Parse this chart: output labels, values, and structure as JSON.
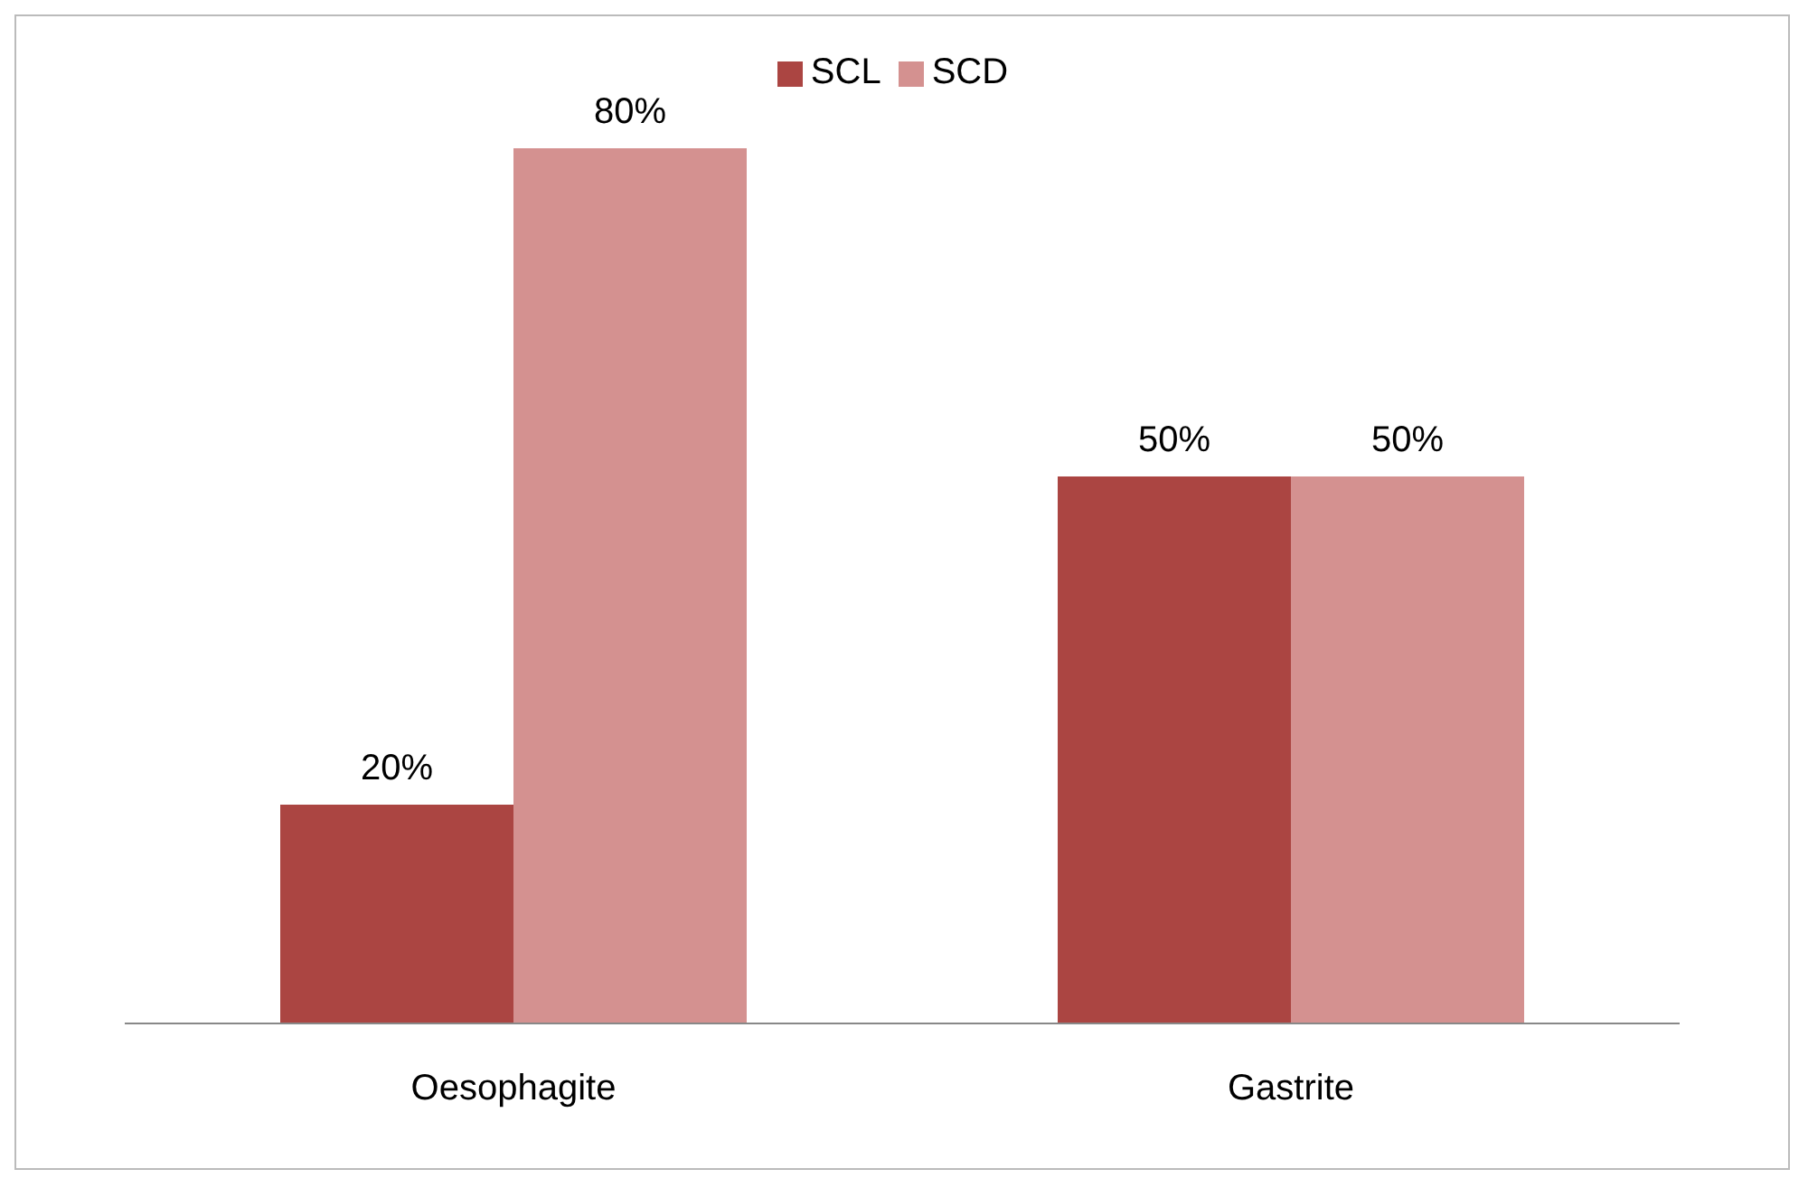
{
  "chart_data": {
    "type": "bar",
    "categories": [
      "Oesophagite",
      "Gastrite"
    ],
    "series": [
      {
        "name": "SCL",
        "color": "#ab4542",
        "values": [
          20,
          50
        ],
        "value_labels": [
          "20%",
          "50%"
        ]
      },
      {
        "name": "SCD",
        "color": "#d49190",
        "values": [
          80,
          50
        ],
        "value_labels": [
          "80%",
          "50%"
        ]
      }
    ],
    "legend": "top",
    "grid": false
  }
}
